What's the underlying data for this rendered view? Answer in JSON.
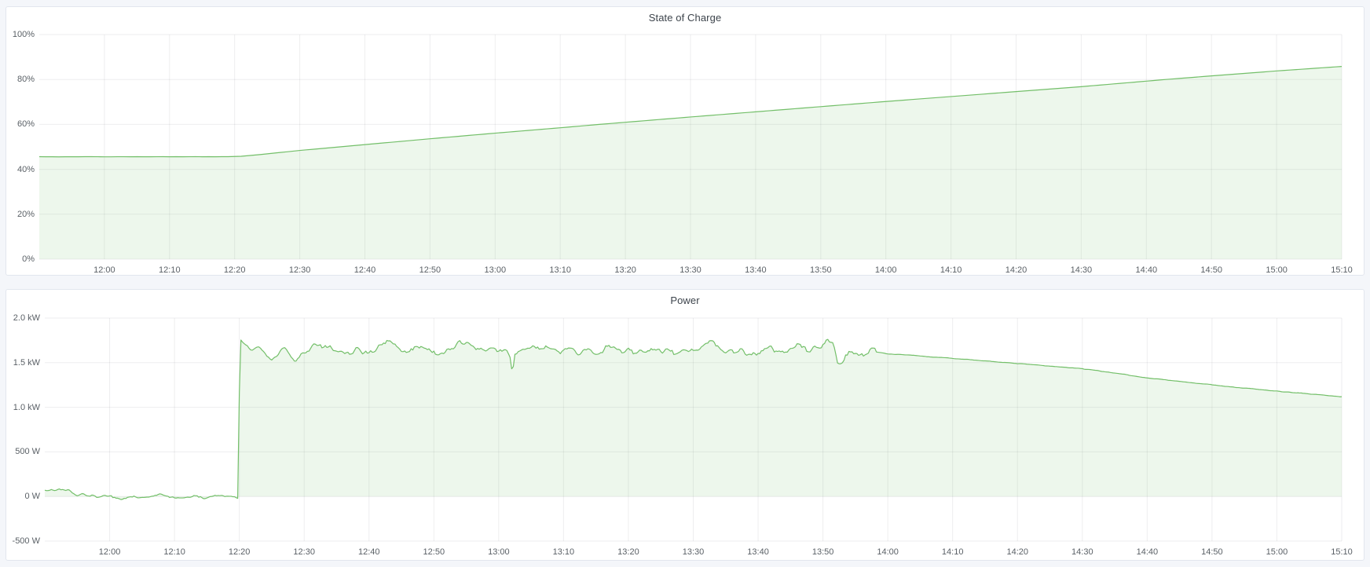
{
  "page": {
    "background": "#f4f6fa",
    "panel_background": "#ffffff",
    "grid_color": "rgba(33,41,48,0.08)",
    "tick_label_color": "#5a6066",
    "title_color": "#3d444c"
  },
  "chart_data": [
    {
      "type": "area",
      "title": "State of Charge",
      "legend": "none",
      "grid": true,
      "x_range_minutes": [
        710,
        910
      ],
      "x_ticks": [
        {
          "t": 720,
          "label": "12:00"
        },
        {
          "t": 730,
          "label": "12:10"
        },
        {
          "t": 740,
          "label": "12:20"
        },
        {
          "t": 750,
          "label": "12:30"
        },
        {
          "t": 760,
          "label": "12:40"
        },
        {
          "t": 770,
          "label": "12:50"
        },
        {
          "t": 780,
          "label": "13:00"
        },
        {
          "t": 790,
          "label": "13:10"
        },
        {
          "t": 800,
          "label": "13:20"
        },
        {
          "t": 810,
          "label": "13:30"
        },
        {
          "t": 820,
          "label": "13:40"
        },
        {
          "t": 830,
          "label": "13:50"
        },
        {
          "t": 840,
          "label": "14:00"
        },
        {
          "t": 850,
          "label": "14:10"
        },
        {
          "t": 860,
          "label": "14:20"
        },
        {
          "t": 870,
          "label": "14:30"
        },
        {
          "t": 880,
          "label": "14:40"
        },
        {
          "t": 890,
          "label": "14:50"
        },
        {
          "t": 900,
          "label": "15:00"
        },
        {
          "t": 910,
          "label": "15:10"
        }
      ],
      "ylim": [
        0,
        100
      ],
      "y_ticks": [
        {
          "v": 0,
          "label": "0%"
        },
        {
          "v": 20,
          "label": "20%"
        },
        {
          "v": 40,
          "label": "40%"
        },
        {
          "v": 60,
          "label": "60%"
        },
        {
          "v": 80,
          "label": "80%"
        },
        {
          "v": 100,
          "label": "100%"
        }
      ],
      "series": [
        {
          "name": "State of Charge",
          "color": "#73bf69",
          "fill": "rgba(115,191,105,0.13)",
          "line_width": 1.2,
          "fill_to": 0,
          "sample_step": 1,
          "seed": 3,
          "anchors": [
            [
              710,
              45.6
            ],
            [
              739,
              45.6
            ],
            [
              741,
              45.8
            ],
            [
              744,
              46.6
            ],
            [
              747,
              47.5
            ],
            [
              750,
              48.4
            ],
            [
              760,
              51.0
            ],
            [
              770,
              53.6
            ],
            [
              780,
              56.1
            ],
            [
              790,
              58.5
            ],
            [
              796,
              60.0
            ],
            [
              810,
              63.3
            ],
            [
              820,
              65.6
            ],
            [
              830,
              67.9
            ],
            [
              840,
              70.2
            ],
            [
              850,
              72.4
            ],
            [
              860,
              74.6
            ],
            [
              870,
              76.8
            ],
            [
              883,
              80.0
            ],
            [
              890,
              81.6
            ],
            [
              900,
              83.8
            ],
            [
              910,
              85.8
            ]
          ],
          "noise": [
            {
              "t0": 710,
              "t1": 740,
              "amp": 0.06
            },
            {
              "t0": 740,
              "t1": 910,
              "amp": 0.0
            }
          ]
        }
      ]
    },
    {
      "type": "area",
      "title": "Power",
      "legend": "none",
      "grid": true,
      "x_range_minutes": [
        710,
        910
      ],
      "x_ticks": [
        {
          "t": 720,
          "label": "12:00"
        },
        {
          "t": 730,
          "label": "12:10"
        },
        {
          "t": 740,
          "label": "12:20"
        },
        {
          "t": 750,
          "label": "12:30"
        },
        {
          "t": 760,
          "label": "12:40"
        },
        {
          "t": 770,
          "label": "12:50"
        },
        {
          "t": 780,
          "label": "13:00"
        },
        {
          "t": 790,
          "label": "13:10"
        },
        {
          "t": 800,
          "label": "13:20"
        },
        {
          "t": 810,
          "label": "13:30"
        },
        {
          "t": 820,
          "label": "13:40"
        },
        {
          "t": 830,
          "label": "13:50"
        },
        {
          "t": 840,
          "label": "14:00"
        },
        {
          "t": 850,
          "label": "14:10"
        },
        {
          "t": 860,
          "label": "14:20"
        },
        {
          "t": 870,
          "label": "14:30"
        },
        {
          "t": 880,
          "label": "14:40"
        },
        {
          "t": 890,
          "label": "14:50"
        },
        {
          "t": 900,
          "label": "15:00"
        },
        {
          "t": 910,
          "label": "15:10"
        }
      ],
      "ylim": [
        -500,
        2000
      ],
      "y_ticks": [
        {
          "v": -500,
          "label": "-500 W"
        },
        {
          "v": 0,
          "label": "0 W"
        },
        {
          "v": 500,
          "label": "500 W"
        },
        {
          "v": 1000,
          "label": "1.0 kW"
        },
        {
          "v": 1500,
          "label": "1.5 kW"
        },
        {
          "v": 2000,
          "label": "2.0 kW"
        }
      ],
      "series": [
        {
          "name": "Power",
          "color": "#73bf69",
          "fill": "rgba(115,191,105,0.13)",
          "line_width": 1.2,
          "fill_to": 0,
          "sample_step": 0.25,
          "seed": 11,
          "anchors": [
            [
              710,
              60
            ],
            [
              711,
              75
            ],
            [
              712,
              65
            ],
            [
              713,
              70
            ],
            [
              714,
              45
            ],
            [
              715,
              20
            ],
            [
              716,
              25
            ],
            [
              717,
              5
            ],
            [
              718,
              -10
            ],
            [
              719,
              10
            ],
            [
              720,
              0
            ],
            [
              722,
              -15
            ],
            [
              724,
              10
            ],
            [
              726,
              -5
            ],
            [
              728,
              15
            ],
            [
              730,
              -10
            ],
            [
              732,
              5
            ],
            [
              734,
              -15
            ],
            [
              736,
              10
            ],
            [
              738,
              0
            ],
            [
              739.5,
              -5
            ],
            [
              739.8,
              25
            ],
            [
              740.1,
              1780
            ],
            [
              741,
              1700
            ],
            [
              742,
              1660
            ],
            [
              743,
              1680
            ],
            [
              744,
              1620
            ],
            [
              745,
              1560
            ],
            [
              746,
              1600
            ],
            [
              747,
              1660
            ],
            [
              748,
              1545
            ],
            [
              749,
              1560
            ],
            [
              750,
              1620
            ],
            [
              751,
              1660
            ],
            [
              752,
              1700
            ],
            [
              753,
              1710
            ],
            [
              754,
              1680
            ],
            [
              755,
              1640
            ],
            [
              756,
              1600
            ],
            [
              757,
              1620
            ],
            [
              758,
              1660
            ],
            [
              759,
              1620
            ],
            [
              760,
              1640
            ],
            [
              761.5,
              1690
            ],
            [
              763,
              1720
            ],
            [
              764,
              1700
            ],
            [
              765,
              1650
            ],
            [
              766,
              1630
            ],
            [
              767,
              1640
            ],
            [
              768,
              1660
            ],
            [
              769,
              1630
            ],
            [
              770,
              1620
            ],
            [
              771,
              1610
            ],
            [
              772,
              1640
            ],
            [
              773,
              1660
            ],
            [
              774,
              1700
            ],
            [
              775,
              1720
            ],
            [
              776,
              1680
            ],
            [
              777,
              1640
            ],
            [
              778,
              1620
            ],
            [
              779,
              1630
            ],
            [
              780,
              1650
            ],
            [
              781,
              1620
            ],
            [
              781.7,
              1600
            ],
            [
              782.1,
              1370
            ],
            [
              782.5,
              1590
            ],
            [
              783,
              1620
            ],
            [
              784,
              1640
            ],
            [
              785,
              1660
            ],
            [
              786,
              1680
            ],
            [
              787,
              1700
            ],
            [
              788,
              1660
            ],
            [
              789,
              1620
            ],
            [
              790,
              1630
            ],
            [
              791,
              1640
            ],
            [
              792,
              1610
            ],
            [
              793,
              1630
            ],
            [
              794,
              1650
            ],
            [
              795,
              1620
            ],
            [
              796,
              1640
            ],
            [
              797,
              1670
            ],
            [
              798,
              1690
            ],
            [
              799,
              1660
            ],
            [
              800,
              1630
            ],
            [
              801,
              1610
            ],
            [
              802,
              1630
            ],
            [
              803,
              1650
            ],
            [
              804,
              1620
            ],
            [
              805,
              1640
            ],
            [
              806,
              1660
            ],
            [
              807,
              1630
            ],
            [
              808,
              1610
            ],
            [
              809,
              1630
            ],
            [
              810,
              1650
            ],
            [
              811,
              1670
            ],
            [
              812,
              1690
            ],
            [
              813,
              1710
            ],
            [
              814,
              1680
            ],
            [
              815,
              1640
            ],
            [
              816,
              1620
            ],
            [
              817,
              1640
            ],
            [
              818,
              1620
            ],
            [
              819,
              1600
            ],
            [
              820,
              1620
            ],
            [
              821,
              1640
            ],
            [
              822,
              1660
            ],
            [
              823,
              1640
            ],
            [
              824,
              1620
            ],
            [
              825,
              1650
            ],
            [
              826,
              1680
            ],
            [
              827,
              1660
            ],
            [
              828,
              1640
            ],
            [
              829,
              1660
            ],
            [
              830,
              1700
            ],
            [
              830.8,
              1730
            ],
            [
              831.6,
              1690
            ],
            [
              832.3,
              1450
            ],
            [
              833,
              1520
            ],
            [
              833.8,
              1590
            ],
            [
              834.5,
              1650
            ],
            [
              835.5,
              1620
            ],
            [
              836.5,
              1600
            ],
            [
              837.5,
              1630
            ],
            [
              838,
              1620
            ],
            [
              840,
              1600
            ],
            [
              845,
              1575
            ],
            [
              850,
              1548
            ],
            [
              855,
              1520
            ],
            [
              860,
              1490
            ],
            [
              865,
              1462
            ],
            [
              870,
              1432
            ],
            [
              875,
              1385
            ],
            [
              880,
              1330
            ],
            [
              885,
              1290
            ],
            [
              890,
              1252
            ],
            [
              895,
              1215
            ],
            [
              900,
              1180
            ],
            [
              905,
              1150
            ],
            [
              910,
              1118
            ]
          ],
          "noise": [
            {
              "t0": 710,
              "t1": 739.5,
              "amp": 25
            },
            {
              "t0": 739.5,
              "t1": 838,
              "amp": 55
            },
            {
              "t0": 838,
              "t1": 910,
              "amp": 4
            }
          ]
        }
      ]
    }
  ]
}
